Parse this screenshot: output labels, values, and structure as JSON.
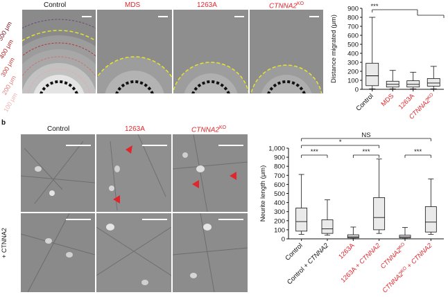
{
  "panel_a": {
    "columns": [
      {
        "label": "Control",
        "color": "#111111",
        "italic": false,
        "sup": ""
      },
      {
        "label": "MDS",
        "color": "#e0262c",
        "italic": false,
        "sup": ""
      },
      {
        "label": "1263A",
        "color": "#e0262c",
        "italic": false,
        "sup": ""
      },
      {
        "label": "CTNNA2",
        "color": "#e0262c",
        "italic": true,
        "sup": "KO"
      }
    ],
    "radius_labels": [
      "500 μm",
      "400 μm",
      "300 μm",
      "200 μm",
      "100 μm"
    ]
  },
  "panel_b": {
    "letter": "b",
    "columns": [
      {
        "label": "Control",
        "color": "#111111",
        "italic": false,
        "sup": ""
      },
      {
        "label": "1263A",
        "color": "#e0262c",
        "italic": false,
        "sup": ""
      },
      {
        "label": "CTNNA2",
        "color": "#e0262c",
        "italic": true,
        "sup": "KO"
      }
    ],
    "row_label": "+ CTNNA2"
  },
  "chart_data": [
    {
      "type": "box",
      "ylabel": "Distance migrated (μm)",
      "ylim": [
        0,
        900
      ],
      "yticks": [
        0,
        100,
        200,
        300,
        400,
        500,
        600,
        700,
        800,
        900
      ],
      "significance": [
        {
          "label": "***"
        }
      ],
      "categories": [
        {
          "label": "Control",
          "color": "#111111"
        },
        {
          "label": "MDS",
          "color": "#e0262c"
        },
        {
          "label": "1263A",
          "color": "#e0262c"
        },
        {
          "label": "CTNNA2KO",
          "color": "#e0262c"
        }
      ],
      "boxes": [
        {
          "min": 5,
          "q1": 40,
          "median": 150,
          "q3": 290,
          "max": 800
        },
        {
          "min": 5,
          "q1": 25,
          "median": 55,
          "q3": 90,
          "max": 210
        },
        {
          "min": 5,
          "q1": 25,
          "median": 55,
          "q3": 95,
          "max": 190
        },
        {
          "min": 5,
          "q1": 35,
          "median": 70,
          "q3": 120,
          "max": 255
        }
      ]
    },
    {
      "type": "box",
      "ylabel": "Neurite length (μm)",
      "ylim": [
        0,
        1000
      ],
      "yticks": [
        0,
        100,
        200,
        300,
        400,
        500,
        600,
        700,
        800,
        900,
        "1,000"
      ],
      "significance": [
        {
          "label": "NS"
        },
        {
          "label": "*"
        },
        {
          "label": "***"
        },
        {
          "label": "***"
        },
        {
          "label": "***"
        }
      ],
      "categories": [
        {
          "label": "Control",
          "color": "#111111"
        },
        {
          "label": "Control + CTNNA2",
          "color": "#111111"
        },
        {
          "label": "1263A",
          "color": "#e0262c"
        },
        {
          "label": "1263A + CTNNA2",
          "color": "#e0262c"
        },
        {
          "label": "CTNNA2KO",
          "color": "#e0262c"
        },
        {
          "label": "CTNNA2KO + CTNNA2",
          "color": "#e0262c"
        }
      ],
      "boxes": [
        {
          "min": 50,
          "q1": 85,
          "median": 190,
          "q3": 340,
          "max": 710
        },
        {
          "min": 40,
          "q1": 60,
          "median": 110,
          "q3": 210,
          "max": 430
        },
        {
          "min": 2,
          "q1": 10,
          "median": 22,
          "q3": 45,
          "max": 130
        },
        {
          "min": 60,
          "q1": 100,
          "median": 235,
          "q3": 455,
          "max": 880
        },
        {
          "min": 2,
          "q1": 10,
          "median": 22,
          "q3": 40,
          "max": 125
        },
        {
          "min": 50,
          "q1": 75,
          "median": 185,
          "q3": 355,
          "max": 660
        }
      ]
    }
  ],
  "colors": {
    "red": "#e0262c",
    "yellow_dash": "#e6e62a"
  }
}
